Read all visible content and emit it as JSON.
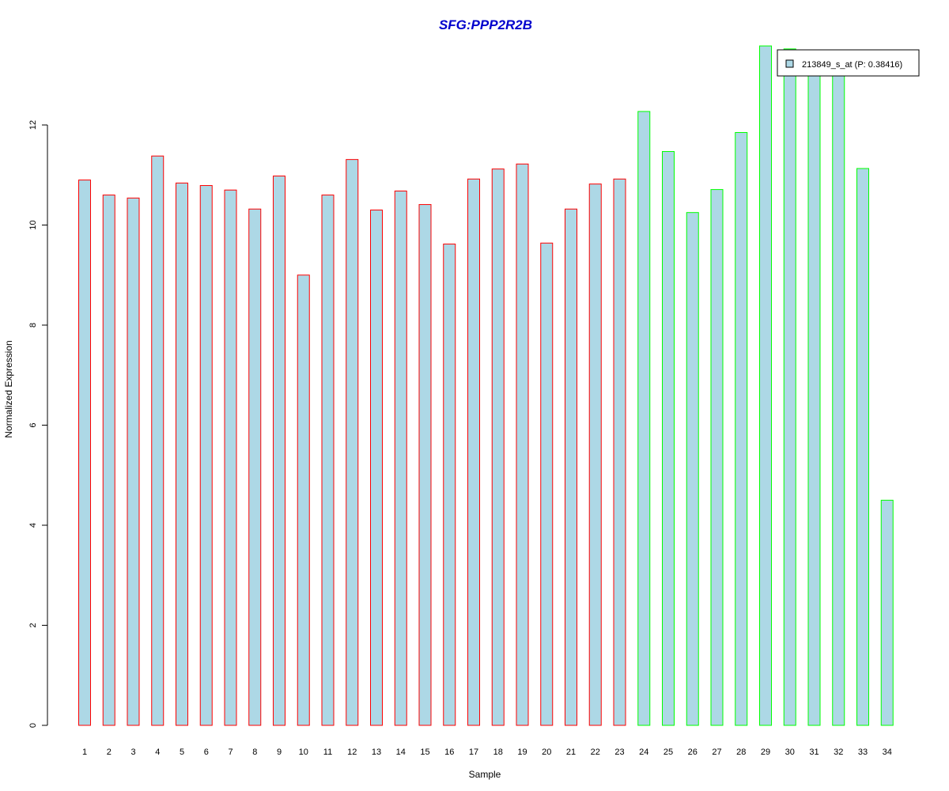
{
  "chart_data": {
    "type": "bar",
    "title": "SFG:PPP2R2B",
    "xlabel": "Sample",
    "ylabel": "Normalized Expression",
    "ylim": [
      0,
      13.7
    ],
    "yticks": [
      0,
      2,
      4,
      6,
      8,
      10,
      12
    ],
    "grid": false,
    "legend_placement": "top-right",
    "categories": [
      "1",
      "2",
      "3",
      "4",
      "5",
      "6",
      "7",
      "8",
      "9",
      "10",
      "11",
      "12",
      "13",
      "14",
      "15",
      "16",
      "17",
      "18",
      "19",
      "20",
      "21",
      "22",
      "23",
      "24",
      "25",
      "26",
      "27",
      "28",
      "29",
      "30",
      "31",
      "32",
      "33",
      "34"
    ],
    "series": [
      {
        "name": "213849_s_at (P: 0.38416)",
        "values": [
          10.9,
          10.6,
          10.54,
          11.38,
          10.84,
          10.79,
          10.7,
          10.32,
          10.98,
          9.0,
          10.6,
          11.31,
          10.3,
          10.68,
          10.41,
          9.62,
          10.92,
          11.12,
          11.22,
          9.64,
          10.32,
          10.82,
          10.92,
          12.27,
          11.47,
          10.25,
          10.71,
          11.85,
          13.58,
          13.52,
          13.2,
          13.1,
          11.13,
          4.5
        ]
      }
    ],
    "bar_fill": "#add8e6",
    "group_border_colors": [
      "#ff0000",
      "#ff0000",
      "#ff0000",
      "#ff0000",
      "#ff0000",
      "#ff0000",
      "#ff0000",
      "#ff0000",
      "#ff0000",
      "#ff0000",
      "#ff0000",
      "#ff0000",
      "#ff0000",
      "#ff0000",
      "#ff0000",
      "#ff0000",
      "#ff0000",
      "#ff0000",
      "#ff0000",
      "#ff0000",
      "#ff0000",
      "#ff0000",
      "#ff0000",
      "#00ff00",
      "#00ff00",
      "#00ff00",
      "#00ff00",
      "#00ff00",
      "#00ff00",
      "#00ff00",
      "#00ff00",
      "#00ff00",
      "#00ff00",
      "#00ff00"
    ],
    "title_color": "#0000cd",
    "legend_border_color": "#000000"
  }
}
